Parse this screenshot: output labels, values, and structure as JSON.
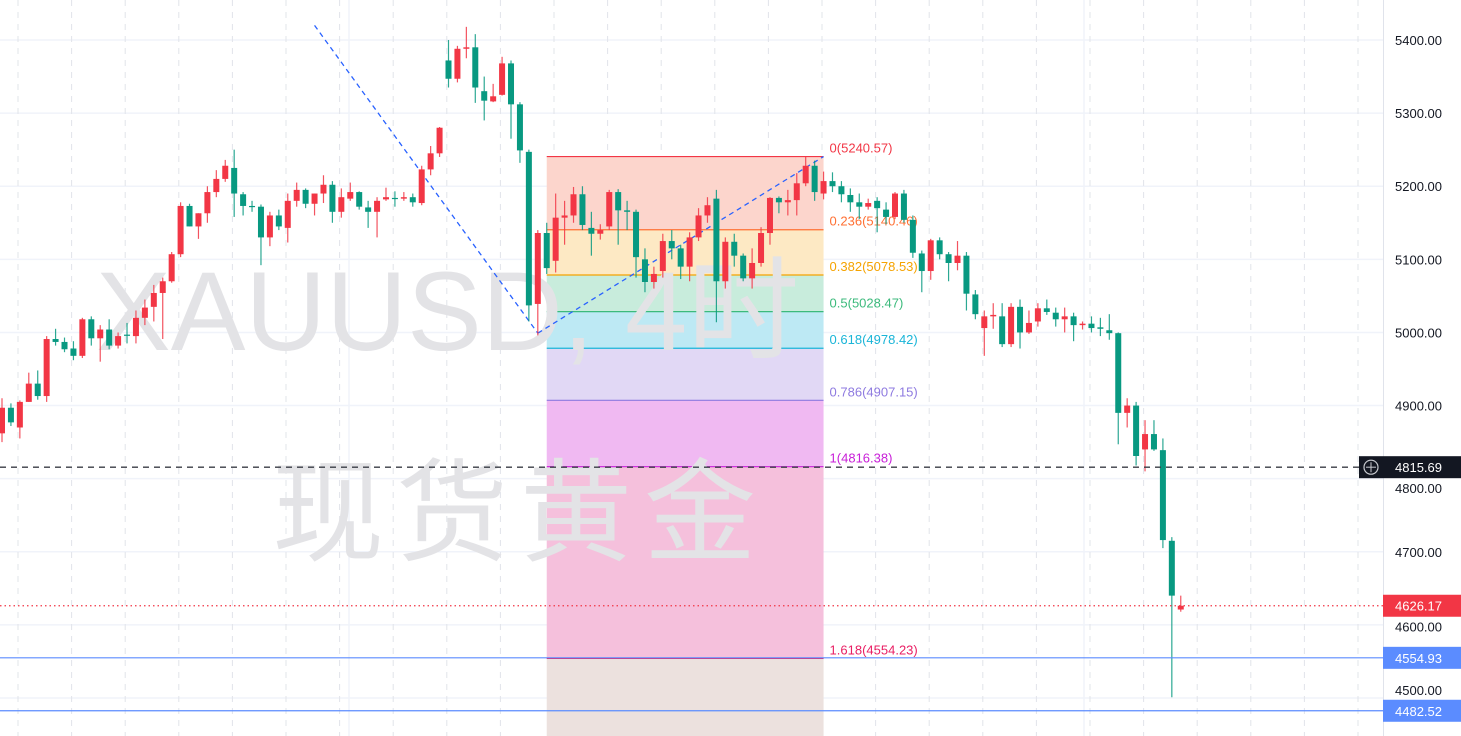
{
  "watermark": {
    "symbol": "XAUUSD, 4时",
    "name": "现货黄金"
  },
  "colors": {
    "up": "#f23645",
    "down": "#089981",
    "grid": "#f0f3fa",
    "trendline": "#2962ff",
    "crosshair_tag": "#131722",
    "last_price": "#f23645",
    "alert_line": "#5b8cff"
  },
  "chart_data": {
    "type": "candlestick",
    "symbol": "XAUUSD",
    "grid": true,
    "ylim": [
      4470,
      5440
    ],
    "y_ticks": [
      {
        "value": 5400,
        "label": "5400.00"
      },
      {
        "value": 5300,
        "label": "5300.00"
      },
      {
        "value": 5200,
        "label": "5200.00"
      },
      {
        "value": 5100,
        "label": "5100.00"
      },
      {
        "value": 5000,
        "label": "5000.00"
      },
      {
        "value": 4900,
        "label": "4900.00"
      },
      {
        "value": 4800,
        "label": "4800.00"
      },
      {
        "value": 4700,
        "label": "4700.00"
      },
      {
        "value": 4600,
        "label": "4600.00"
      },
      {
        "value": 4500,
        "label": "4500.00"
      }
    ],
    "candles_ohlc": [
      [
        4862,
        4910,
        4850,
        4897
      ],
      [
        4897,
        4903,
        4872,
        4877
      ],
      [
        4870,
        4907,
        4855,
        4905
      ],
      [
        4905,
        4945,
        4905,
        4930
      ],
      [
        4930,
        4948,
        4908,
        4913
      ],
      [
        4913,
        4995,
        4905,
        4991
      ],
      [
        4991,
        5005,
        4982,
        4987
      ],
      [
        4987,
        4993,
        4973,
        4977
      ],
      [
        4978,
        4988,
        4962,
        4968
      ],
      [
        4968,
        5020,
        4965,
        5018
      ],
      [
        5018,
        5022,
        4982,
        4992
      ],
      [
        4992,
        5010,
        4960,
        5004
      ],
      [
        5004,
        5018,
        4977,
        4982
      ],
      [
        4982,
        5000,
        4978,
        4995
      ],
      [
        4997,
        5013,
        4985,
        4996
      ],
      [
        4995,
        5030,
        4985,
        5020
      ],
      [
        5020,
        5045,
        5010,
        5034
      ],
      [
        5035,
        5065,
        5015,
        5054
      ],
      [
        5054,
        5075,
        4991,
        5070
      ],
      [
        5070,
        5110,
        5068,
        5107
      ],
      [
        5107,
        5178,
        5103,
        5173
      ],
      [
        5173,
        5176,
        5145,
        5145
      ],
      [
        5145,
        5163,
        5128,
        5163
      ],
      [
        5163,
        5200,
        5150,
        5192
      ],
      [
        5192,
        5222,
        5185,
        5210
      ],
      [
        5210,
        5236,
        5206,
        5228
      ],
      [
        5225,
        5250,
        5158,
        5190
      ],
      [
        5189,
        5192,
        5160,
        5173
      ],
      [
        5173,
        5180,
        5165,
        5172
      ],
      [
        5172,
        5175,
        5092,
        5130
      ],
      [
        5130,
        5165,
        5118,
        5160
      ],
      [
        5160,
        5168,
        5140,
        5145
      ],
      [
        5143,
        5190,
        5123,
        5180
      ],
      [
        5180,
        5205,
        5172,
        5195
      ],
      [
        5195,
        5197,
        5170,
        5176
      ],
      [
        5176,
        5190,
        5160,
        5190
      ],
      [
        5190,
        5215,
        5177,
        5202
      ],
      [
        5202,
        5207,
        5150,
        5165
      ],
      [
        5165,
        5197,
        5157,
        5185
      ],
      [
        5183,
        5205,
        5180,
        5192
      ],
      [
        5192,
        5193,
        5168,
        5172
      ],
      [
        5171,
        5180,
        5143,
        5165
      ],
      [
        5165,
        5185,
        5130,
        5180
      ],
      [
        5182,
        5198,
        5180,
        5185
      ],
      [
        5184,
        5193,
        5172,
        5183
      ],
      [
        5183,
        5192,
        5180,
        5185
      ],
      [
        5185,
        5190,
        5172,
        5178
      ],
      [
        5177,
        5228,
        5174,
        5223
      ],
      [
        5223,
        5255,
        5215,
        5245
      ],
      [
        5245,
        5281,
        5240,
        5280
      ],
      [
        5372,
        5400,
        5335,
        5347
      ],
      [
        5347,
        5392,
        5342,
        5388
      ],
      [
        5388,
        5418,
        5375,
        5390
      ],
      [
        5390,
        5408,
        5314,
        5335
      ],
      [
        5330,
        5350,
        5290,
        5317
      ],
      [
        5316,
        5340,
        5315,
        5323
      ],
      [
        5325,
        5377,
        5324,
        5368
      ],
      [
        5368,
        5372,
        5265,
        5312
      ],
      [
        5312,
        5315,
        5232,
        5249
      ],
      [
        5247,
        5250,
        5015,
        5037
      ],
      [
        5039,
        5140,
        4996,
        5136
      ],
      [
        5136,
        5150,
        5080,
        5088
      ],
      [
        5098,
        5190,
        5082,
        5157
      ],
      [
        5157,
        5180,
        5120,
        5160
      ],
      [
        5160,
        5199,
        5150,
        5189
      ],
      [
        5189,
        5200,
        5140,
        5147
      ],
      [
        5143,
        5165,
        5105,
        5135
      ],
      [
        5135,
        5148,
        5127,
        5140
      ],
      [
        5145,
        5195,
        5140,
        5192
      ],
      [
        5192,
        5196,
        5120,
        5167
      ],
      [
        5167,
        5180,
        5140,
        5165
      ],
      [
        5165,
        5168,
        5075,
        5103
      ],
      [
        5100,
        5115,
        5055,
        5069
      ],
      [
        5069,
        5090,
        5060,
        5080
      ],
      [
        5084,
        5135,
        5075,
        5125
      ],
      [
        5125,
        5140,
        5100,
        5115
      ],
      [
        5115,
        5120,
        5073,
        5090
      ],
      [
        5090,
        5137,
        5070,
        5130
      ],
      [
        5130,
        5170,
        5125,
        5160
      ],
      [
        5160,
        5185,
        5150,
        5174
      ],
      [
        5183,
        5195,
        5014,
        5070
      ],
      [
        5070,
        5130,
        5060,
        5124
      ],
      [
        5124,
        5135,
        5090,
        5105
      ],
      [
        5105,
        5108,
        5070,
        5074
      ],
      [
        5074,
        5115,
        5060,
        5095
      ],
      [
        5095,
        5144,
        5090,
        5136
      ],
      [
        5136,
        5185,
        5120,
        5184
      ],
      [
        5184,
        5186,
        5163,
        5178
      ],
      [
        5178,
        5195,
        5160,
        5181
      ],
      [
        5181,
        5218,
        5160,
        5204
      ],
      [
        5204,
        5240,
        5200,
        5228
      ],
      [
        5228,
        5235,
        5180,
        5192
      ],
      [
        5190,
        5220,
        5182,
        5207
      ],
      [
        5207,
        5219,
        5192,
        5200
      ],
      [
        5200,
        5207,
        5178,
        5189
      ],
      [
        5188,
        5197,
        5165,
        5178
      ],
      [
        5178,
        5190,
        5155,
        5172
      ],
      [
        5172,
        5183,
        5168,
        5177
      ],
      [
        5180,
        5185,
        5137,
        5170
      ],
      [
        5168,
        5178,
        5148,
        5158
      ],
      [
        5158,
        5192,
        5155,
        5190
      ],
      [
        5190,
        5195,
        5150,
        5154
      ],
      [
        5154,
        5160,
        5102,
        5109
      ],
      [
        5108,
        5112,
        5055,
        5084
      ],
      [
        5084,
        5128,
        5072,
        5126
      ],
      [
        5126,
        5130,
        5100,
        5107
      ],
      [
        5107,
        5110,
        5070,
        5095
      ],
      [
        5095,
        5125,
        5085,
        5105
      ],
      [
        5105,
        5110,
        5030,
        5053
      ],
      [
        5052,
        5058,
        5018,
        5025
      ],
      [
        5006,
        5030,
        4968,
        5022
      ],
      [
        5022,
        5040,
        5005,
        5024
      ],
      [
        5022,
        5040,
        4980,
        4984
      ],
      [
        4984,
        5040,
        4980,
        5035
      ],
      [
        5035,
        5045,
        4978,
        5000
      ],
      [
        5000,
        5030,
        4998,
        5013
      ],
      [
        5015,
        5040,
        5008,
        5033
      ],
      [
        5033,
        5045,
        5024,
        5028
      ],
      [
        5027,
        5034,
        5008,
        5018
      ],
      [
        5018,
        5034,
        5000,
        5022
      ],
      [
        5022,
        5027,
        4988,
        5010
      ],
      [
        5010,
        5015,
        5004,
        5012
      ],
      [
        5012,
        5022,
        5000,
        5006
      ],
      [
        5007,
        5020,
        4995,
        5005
      ],
      [
        5003,
        5025,
        4990,
        4999
      ],
      [
        4999,
        5000,
        4847,
        4890
      ],
      [
        4890,
        4910,
        4870,
        4900
      ],
      [
        4900,
        4905,
        4818,
        4831
      ],
      [
        4840,
        4880,
        4810,
        4861
      ],
      [
        4861,
        4880,
        4838,
        4840
      ],
      [
        4839,
        4855,
        4705,
        4716
      ],
      [
        4715,
        4720,
        4501,
        4640
      ],
      [
        4621,
        4640,
        4618,
        4626.17
      ]
    ],
    "fibonacci": {
      "start_bar": 61,
      "end_bar": 92,
      "levels": [
        {
          "ratio": 0,
          "price": 5240.57,
          "label": "0(5240.57)",
          "color": "#f23645"
        },
        {
          "ratio": 0.236,
          "price": 5140.46,
          "label": "0.236(5140.46)",
          "color": "#ff7033"
        },
        {
          "ratio": 0.382,
          "price": 5078.53,
          "label": "0.382(5078.53)",
          "color": "#f5a300"
        },
        {
          "ratio": 0.5,
          "price": 5028.47,
          "label": "0.5(5028.47)",
          "color": "#3cba7c"
        },
        {
          "ratio": 0.618,
          "price": 4978.42,
          "label": "0.618(4978.42)",
          "color": "#1ab5d8"
        },
        {
          "ratio": 0.786,
          "price": 4907.15,
          "label": "0.786(4907.15)",
          "color": "#8e7ae0"
        },
        {
          "ratio": 1,
          "price": 4816.38,
          "label": "1(4816.38)",
          "color": "#c81fd8"
        },
        {
          "ratio": 1.618,
          "price": 4554.23,
          "label": "1.618(4554.23)",
          "color": "#e91e63"
        }
      ],
      "fills": [
        "#fcd5cc",
        "#fde9c4",
        "#c8ecdc",
        "#bde9f4",
        "#e1d8f5",
        "#f0b9f2",
        "#f5c0dc",
        "#ece1de"
      ]
    },
    "trendline_points": [
      [
        35,
        5420
      ],
      [
        60,
        4999
      ],
      [
        92,
        5240.57
      ]
    ],
    "price_lines": [
      {
        "price": 4815.69,
        "label": "4815.69",
        "style": "dashed",
        "kind": "crosshair"
      },
      {
        "price": 4626.17,
        "label": "4626.17",
        "style": "dotted",
        "kind": "last-price"
      },
      {
        "price": 4554.93,
        "label": "4554.93",
        "style": "solid",
        "kind": "alert"
      },
      {
        "price": 4482.52,
        "label": "4482.52",
        "style": "solid",
        "kind": "alert"
      }
    ]
  }
}
